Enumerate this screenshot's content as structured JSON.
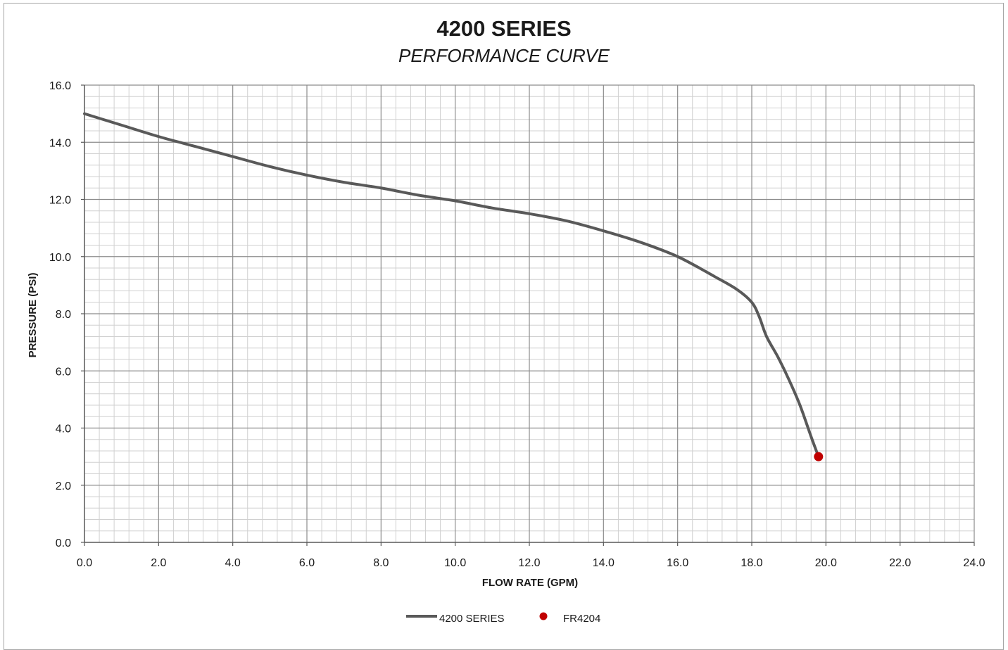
{
  "chart_data": {
    "type": "line",
    "title": "4200 SERIES",
    "subtitle": "PERFORMANCE CURVE",
    "xlabel": "FLOW RATE  (GPM)",
    "ylabel": "PRESSURE (PSI)",
    "xlim": [
      0,
      24
    ],
    "ylim": [
      0,
      16
    ],
    "x_ticks": [
      "0.0",
      "2.0",
      "4.0",
      "6.0",
      "8.0",
      "10.0",
      "12.0",
      "14.0",
      "16.0",
      "18.0",
      "20.0",
      "22.0",
      "24.0"
    ],
    "y_ticks": [
      "0.0",
      "2.0",
      "4.0",
      "6.0",
      "8.0",
      "10.0",
      "12.0",
      "14.0",
      "16.0"
    ],
    "grid": true,
    "legend_position": "bottom",
    "series": [
      {
        "name": "4200 SERIES",
        "kind": "line",
        "color": "#595959",
        "points": [
          [
            0,
            15.0
          ],
          [
            1,
            14.6
          ],
          [
            2,
            14.2
          ],
          [
            3,
            13.85
          ],
          [
            4,
            13.5
          ],
          [
            5,
            13.15
          ],
          [
            6,
            12.85
          ],
          [
            7,
            12.6
          ],
          [
            8,
            12.4
          ],
          [
            9,
            12.15
          ],
          [
            10,
            11.95
          ],
          [
            11,
            11.7
          ],
          [
            12,
            11.5
          ],
          [
            13,
            11.25
          ],
          [
            14,
            10.9
          ],
          [
            15,
            10.5
          ],
          [
            16,
            10.0
          ],
          [
            17,
            9.3
          ],
          [
            17.6,
            8.85
          ],
          [
            18.0,
            8.4
          ],
          [
            18.2,
            7.9
          ],
          [
            18.4,
            7.2
          ],
          [
            18.7,
            6.5
          ],
          [
            19.0,
            5.7
          ],
          [
            19.3,
            4.8
          ],
          [
            19.6,
            3.7
          ],
          [
            19.8,
            3.0
          ]
        ]
      },
      {
        "name": "FR4204",
        "kind": "marker",
        "color": "#c00000",
        "points": [
          [
            19.8,
            3.0
          ]
        ]
      }
    ]
  }
}
